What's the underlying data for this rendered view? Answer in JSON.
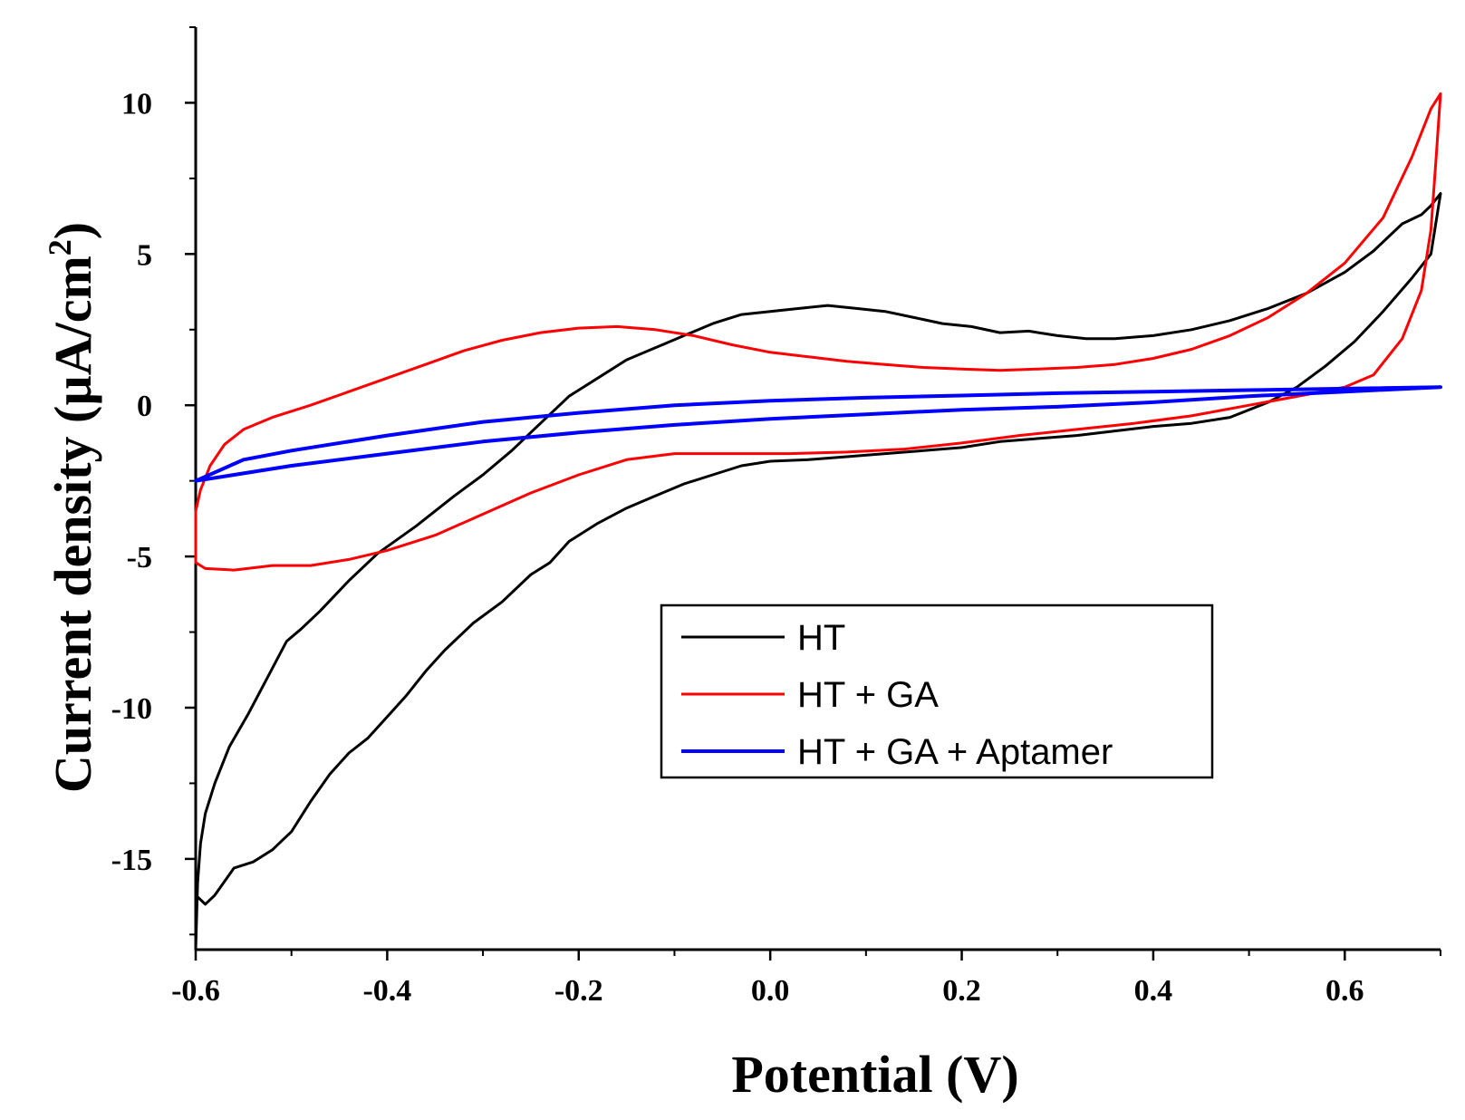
{
  "chart_data": {
    "type": "line",
    "title": "",
    "xlabel": "Potential (V)",
    "ylabel": "Current density (µA/cm²)",
    "xlim": [
      -0.6,
      0.7
    ],
    "ylim": [
      -18,
      12.5
    ],
    "x_ticks": [
      -0.6,
      -0.4,
      -0.2,
      0.0,
      0.2,
      0.4,
      0.6
    ],
    "x_tick_labels": [
      "-0.6",
      "-0.4",
      "-0.2",
      "0.0",
      "0.2",
      "0.4",
      "0.6"
    ],
    "x_minor_ticks": [
      -0.5,
      -0.3,
      -0.1,
      0.1,
      0.3,
      0.5,
      0.7
    ],
    "y_ticks": [
      10,
      5,
      0,
      -5,
      -10,
      -15
    ],
    "y_tick_labels": [
      "10",
      "5",
      "0",
      "-5",
      "-10",
      "-15"
    ],
    "y_minor_ticks": [
      12.5,
      7.5,
      2.5,
      -2.5,
      -7.5,
      -12.5,
      -17.5
    ],
    "legend_position": "center-right",
    "series": [
      {
        "name": "HT",
        "color": "#000000",
        "points": [
          [
            -0.6,
            -18.0
          ],
          [
            -0.598,
            -15.8
          ],
          [
            -0.595,
            -14.5
          ],
          [
            -0.59,
            -13.5
          ],
          [
            -0.58,
            -12.5
          ],
          [
            -0.565,
            -11.3
          ],
          [
            -0.545,
            -10.2
          ],
          [
            -0.525,
            -9.0
          ],
          [
            -0.505,
            -7.8
          ],
          [
            -0.49,
            -7.4
          ],
          [
            -0.47,
            -6.8
          ],
          [
            -0.44,
            -5.8
          ],
          [
            -0.41,
            -4.9
          ],
          [
            -0.37,
            -4.0
          ],
          [
            -0.33,
            -3.0
          ],
          [
            -0.3,
            -2.3
          ],
          [
            -0.27,
            -1.5
          ],
          [
            -0.24,
            -0.6
          ],
          [
            -0.21,
            0.3
          ],
          [
            -0.18,
            0.9
          ],
          [
            -0.15,
            1.5
          ],
          [
            -0.12,
            1.9
          ],
          [
            -0.09,
            2.3
          ],
          [
            -0.06,
            2.7
          ],
          [
            -0.03,
            3.0
          ],
          [
            0.0,
            3.1
          ],
          [
            0.03,
            3.2
          ],
          [
            0.06,
            3.3
          ],
          [
            0.09,
            3.2
          ],
          [
            0.12,
            3.1
          ],
          [
            0.15,
            2.9
          ],
          [
            0.18,
            2.7
          ],
          [
            0.21,
            2.6
          ],
          [
            0.24,
            2.4
          ],
          [
            0.27,
            2.45
          ],
          [
            0.3,
            2.3
          ],
          [
            0.33,
            2.2
          ],
          [
            0.36,
            2.2
          ],
          [
            0.4,
            2.3
          ],
          [
            0.44,
            2.5
          ],
          [
            0.48,
            2.8
          ],
          [
            0.52,
            3.2
          ],
          [
            0.56,
            3.7
          ],
          [
            0.6,
            4.4
          ],
          [
            0.63,
            5.1
          ],
          [
            0.66,
            6.0
          ],
          [
            0.68,
            6.3
          ],
          [
            0.69,
            6.6
          ],
          [
            0.7,
            7.0
          ],
          [
            0.69,
            5.0
          ],
          [
            0.67,
            4.2
          ],
          [
            0.64,
            3.1
          ],
          [
            0.61,
            2.1
          ],
          [
            0.58,
            1.3
          ],
          [
            0.55,
            0.6
          ],
          [
            0.52,
            0.1
          ],
          [
            0.48,
            -0.4
          ],
          [
            0.44,
            -0.6
          ],
          [
            0.4,
            -0.7
          ],
          [
            0.36,
            -0.85
          ],
          [
            0.32,
            -1.0
          ],
          [
            0.28,
            -1.1
          ],
          [
            0.24,
            -1.2
          ],
          [
            0.2,
            -1.4
          ],
          [
            0.16,
            -1.5
          ],
          [
            0.12,
            -1.6
          ],
          [
            0.08,
            -1.7
          ],
          [
            0.04,
            -1.8
          ],
          [
            0.0,
            -1.85
          ],
          [
            -0.03,
            -2.0
          ],
          [
            -0.06,
            -2.3
          ],
          [
            -0.09,
            -2.6
          ],
          [
            -0.12,
            -3.0
          ],
          [
            -0.15,
            -3.4
          ],
          [
            -0.18,
            -3.9
          ],
          [
            -0.21,
            -4.5
          ],
          [
            -0.23,
            -5.2
          ],
          [
            -0.25,
            -5.6
          ],
          [
            -0.28,
            -6.5
          ],
          [
            -0.31,
            -7.2
          ],
          [
            -0.34,
            -8.1
          ],
          [
            -0.36,
            -8.8
          ],
          [
            -0.38,
            -9.6
          ],
          [
            -0.4,
            -10.3
          ],
          [
            -0.42,
            -11.0
          ],
          [
            -0.44,
            -11.5
          ],
          [
            -0.46,
            -12.2
          ],
          [
            -0.48,
            -13.1
          ],
          [
            -0.5,
            -14.1
          ],
          [
            -0.51,
            -14.4
          ],
          [
            -0.52,
            -14.7
          ],
          [
            -0.54,
            -15.1
          ],
          [
            -0.56,
            -15.3
          ],
          [
            -0.58,
            -16.2
          ],
          [
            -0.59,
            -16.5
          ],
          [
            -0.6,
            -16.2
          ]
        ]
      },
      {
        "name": "HT + GA",
        "color": "#ff0000",
        "points": [
          [
            -0.6,
            -3.5
          ],
          [
            -0.595,
            -2.8
          ],
          [
            -0.585,
            -2.0
          ],
          [
            -0.57,
            -1.3
          ],
          [
            -0.55,
            -0.8
          ],
          [
            -0.52,
            -0.4
          ],
          [
            -0.48,
            0.0
          ],
          [
            -0.44,
            0.45
          ],
          [
            -0.4,
            0.9
          ],
          [
            -0.36,
            1.35
          ],
          [
            -0.32,
            1.8
          ],
          [
            -0.28,
            2.15
          ],
          [
            -0.24,
            2.4
          ],
          [
            -0.2,
            2.55
          ],
          [
            -0.16,
            2.6
          ],
          [
            -0.12,
            2.5
          ],
          [
            -0.08,
            2.3
          ],
          [
            -0.04,
            2.0
          ],
          [
            0.0,
            1.75
          ],
          [
            0.04,
            1.6
          ],
          [
            0.08,
            1.45
          ],
          [
            0.12,
            1.35
          ],
          [
            0.16,
            1.25
          ],
          [
            0.2,
            1.2
          ],
          [
            0.24,
            1.15
          ],
          [
            0.28,
            1.2
          ],
          [
            0.32,
            1.25
          ],
          [
            0.36,
            1.35
          ],
          [
            0.4,
            1.55
          ],
          [
            0.44,
            1.85
          ],
          [
            0.48,
            2.3
          ],
          [
            0.52,
            2.9
          ],
          [
            0.56,
            3.7
          ],
          [
            0.6,
            4.7
          ],
          [
            0.64,
            6.2
          ],
          [
            0.67,
            8.2
          ],
          [
            0.69,
            9.8
          ],
          [
            0.7,
            10.3
          ],
          [
            0.695,
            8.0
          ],
          [
            0.69,
            5.8
          ],
          [
            0.68,
            3.8
          ],
          [
            0.66,
            2.2
          ],
          [
            0.63,
            1.0
          ],
          [
            0.6,
            0.6
          ],
          [
            0.56,
            0.35
          ],
          [
            0.5,
            0.0
          ],
          [
            0.44,
            -0.35
          ],
          [
            0.38,
            -0.6
          ],
          [
            0.32,
            -0.8
          ],
          [
            0.26,
            -1.0
          ],
          [
            0.2,
            -1.25
          ],
          [
            0.14,
            -1.45
          ],
          [
            0.08,
            -1.55
          ],
          [
            0.02,
            -1.6
          ],
          [
            -0.04,
            -1.6
          ],
          [
            -0.1,
            -1.6
          ],
          [
            -0.15,
            -1.8
          ],
          [
            -0.2,
            -2.3
          ],
          [
            -0.25,
            -2.9
          ],
          [
            -0.3,
            -3.6
          ],
          [
            -0.35,
            -4.3
          ],
          [
            -0.4,
            -4.8
          ],
          [
            -0.44,
            -5.1
          ],
          [
            -0.48,
            -5.3
          ],
          [
            -0.52,
            -5.3
          ],
          [
            -0.56,
            -5.45
          ],
          [
            -0.59,
            -5.4
          ],
          [
            -0.6,
            -5.2
          ],
          [
            -0.6,
            -3.5
          ]
        ]
      },
      {
        "name": "HT + GA + Aptamer",
        "color": "#0000ff",
        "points": [
          [
            -0.6,
            -2.5
          ],
          [
            -0.55,
            -1.8
          ],
          [
            -0.5,
            -1.5
          ],
          [
            -0.4,
            -1.0
          ],
          [
            -0.3,
            -0.55
          ],
          [
            -0.2,
            -0.25
          ],
          [
            -0.1,
            0.0
          ],
          [
            0.0,
            0.15
          ],
          [
            0.1,
            0.25
          ],
          [
            0.2,
            0.32
          ],
          [
            0.3,
            0.4
          ],
          [
            0.4,
            0.45
          ],
          [
            0.5,
            0.5
          ],
          [
            0.6,
            0.55
          ],
          [
            0.7,
            0.6
          ],
          [
            0.6,
            0.45
          ],
          [
            0.5,
            0.3
          ],
          [
            0.4,
            0.1
          ],
          [
            0.3,
            -0.05
          ],
          [
            0.2,
            -0.15
          ],
          [
            0.1,
            -0.3
          ],
          [
            0.0,
            -0.45
          ],
          [
            -0.1,
            -0.65
          ],
          [
            -0.2,
            -0.9
          ],
          [
            -0.3,
            -1.2
          ],
          [
            -0.4,
            -1.6
          ],
          [
            -0.5,
            -2.0
          ],
          [
            -0.6,
            -2.5
          ]
        ]
      }
    ]
  },
  "legend": {
    "items": [
      {
        "label": "HT",
        "color": "#000000"
      },
      {
        "label": "HT + GA",
        "color": "#ff0000"
      },
      {
        "label": "HT + GA + Aptamer",
        "color": "#0000ff"
      }
    ]
  },
  "y_title_parts": {
    "main": "Current density (µA/cm",
    "sup": "2",
    "close": ")"
  }
}
